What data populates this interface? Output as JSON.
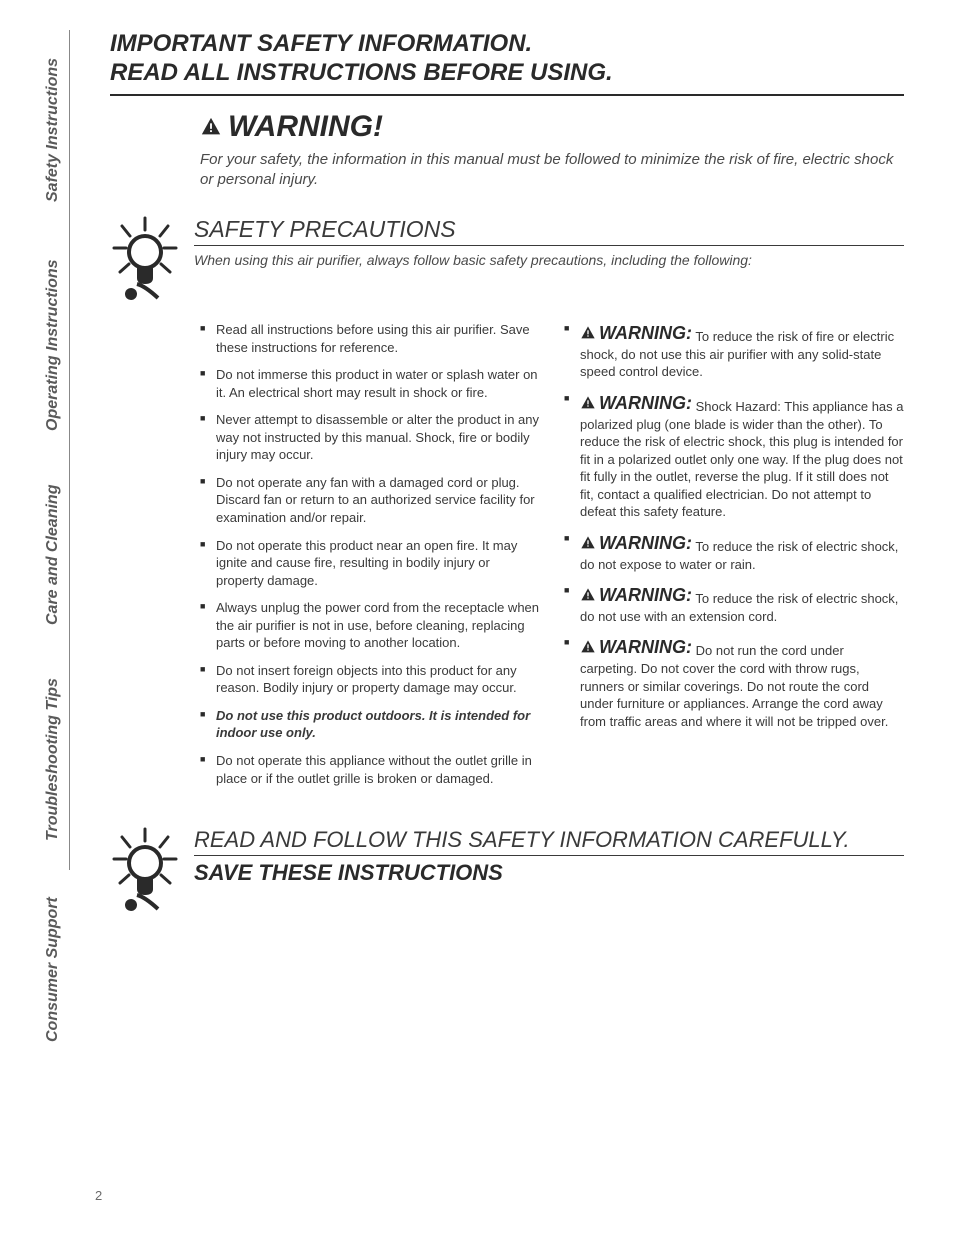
{
  "sideTabs": [
    "Safety Instructions",
    "Operating Instructions",
    "Care and Cleaning",
    "Troubleshooting Tips",
    "Consumer Support"
  ],
  "pageTitle": "IMPORTANT SAFETY INFORMATION.\nREAD ALL INSTRUCTIONS BEFORE USING.",
  "warning": {
    "title": "WARNING!",
    "sub": "For your safety, the information in this manual must be followed to minimize the risk of fire, electric shock or personal injury."
  },
  "precautions": {
    "title": "SAFETY PRECAUTIONS",
    "sub": "When using this air purifier, always follow basic safety precautions, including the following:",
    "left": [
      {
        "text": "Read all instructions before using this air purifier. Save these instructions for reference."
      },
      {
        "text": "Do not immerse this product in water or splash water on it. An electrical short may result in shock or fire."
      },
      {
        "text": "Never attempt to disassemble or alter the product in any way not instructed by this manual. Shock, fire or bodily injury may occur."
      },
      {
        "text": "Do not operate any fan with a damaged cord or plug. Discard fan or return to an authorized service facility for examination and/or repair."
      },
      {
        "text": "Do not operate this product near an open fire. It may ignite and cause fire, resulting in bodily injury or property damage."
      },
      {
        "text": "Always unplug the power cord from the receptacle when the air purifier is not in use, before cleaning, replacing parts or before moving to another location."
      },
      {
        "text": "Do not insert foreign objects into this product for any reason. Bodily injury or property damage may occur."
      },
      {
        "text": "Do not use this product outdoors. It is intended for indoor use only.",
        "bold": true
      },
      {
        "text": "Do not operate this appliance without the outlet grille in place or if the outlet grille is broken or damaged."
      }
    ],
    "right": [
      {
        "label": "WARNING:",
        "text": "To reduce the risk of fire or electric shock, do not use this air purifier with any solid-state speed control device."
      },
      {
        "label": "WARNING:",
        "text": "Shock Hazard: This appliance has a polarized plug (one blade is wider than the other). To reduce the risk of electric shock, this plug is intended for fit in a polarized outlet only one way. If the plug does not fit fully in the outlet, reverse the plug. If it still does not fit, contact a qualified electrician. Do not attempt to defeat this safety feature."
      },
      {
        "label": "WARNING:",
        "text": "To reduce the risk of electric shock, do not expose to water or rain."
      },
      {
        "label": "WARNING:",
        "text": "To reduce the risk of electric shock, do not use with an extension cord."
      },
      {
        "label": "WARNING:",
        "text": "Do not run the cord under carpeting. Do not cover the cord with throw rugs, runners or similar coverings. Do not route the cord under furniture or appliances. Arrange the cord away from traffic areas and where it will not be tripped over."
      }
    ]
  },
  "footer": {
    "line1": "READ AND FOLLOW THIS SAFETY INFORMATION CAREFULLY.",
    "line2": "SAVE THESE INSTRUCTIONS"
  },
  "pageNumber": "2"
}
